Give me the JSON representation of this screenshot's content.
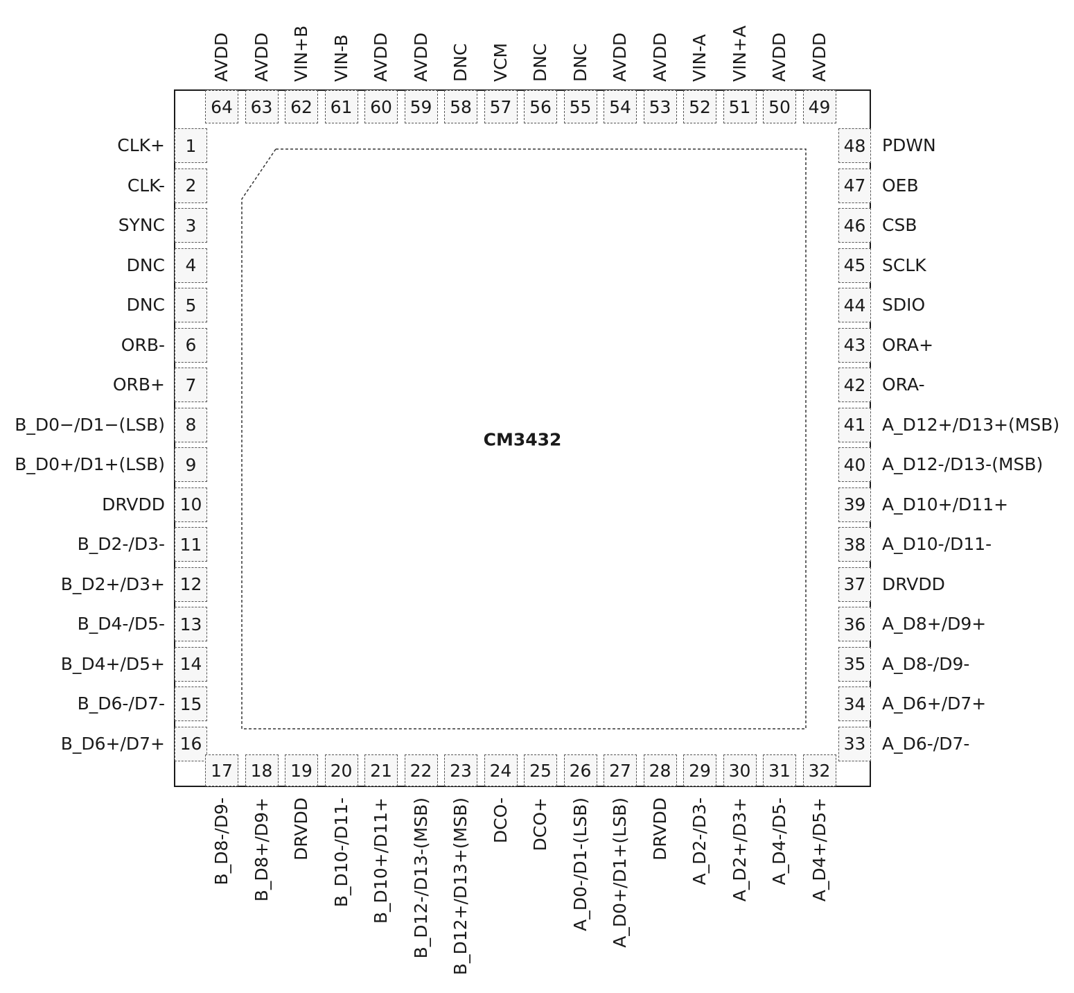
{
  "part_number": "CM3432",
  "pins": {
    "left": [
      {
        "num": "1",
        "name": "CLK+"
      },
      {
        "num": "2",
        "name": "CLK-"
      },
      {
        "num": "3",
        "name": "SYNC"
      },
      {
        "num": "4",
        "name": "DNC"
      },
      {
        "num": "5",
        "name": "DNC"
      },
      {
        "num": "6",
        "name": "ORB-"
      },
      {
        "num": "7",
        "name": "ORB+"
      },
      {
        "num": "8",
        "name": "B_D0−/D1−(LSB)"
      },
      {
        "num": "9",
        "name": "B_D0+/D1+(LSB)"
      },
      {
        "num": "10",
        "name": "DRVDD"
      },
      {
        "num": "11",
        "name": "B_D2-/D3-"
      },
      {
        "num": "12",
        "name": "B_D2+/D3+"
      },
      {
        "num": "13",
        "name": "B_D4-/D5-"
      },
      {
        "num": "14",
        "name": "B_D4+/D5+"
      },
      {
        "num": "15",
        "name": "B_D6-/D7-"
      },
      {
        "num": "16",
        "name": "B_D6+/D7+"
      }
    ],
    "bottom": [
      {
        "num": "17",
        "name": "B_D8-/D9-"
      },
      {
        "num": "18",
        "name": "B_D8+/D9+"
      },
      {
        "num": "19",
        "name": "DRVDD"
      },
      {
        "num": "20",
        "name": "B_D10-/D11-"
      },
      {
        "num": "21",
        "name": "B_D10+/D11+"
      },
      {
        "num": "22",
        "name": "B_D12-/D13-(MSB)"
      },
      {
        "num": "23",
        "name": "B_D12+/D13+(MSB)"
      },
      {
        "num": "24",
        "name": "DCO-"
      },
      {
        "num": "25",
        "name": "DCO+"
      },
      {
        "num": "26",
        "name": "A_D0-/D1-(LSB)"
      },
      {
        "num": "27",
        "name": "A_D0+/D1+(LSB)"
      },
      {
        "num": "28",
        "name": "DRVDD"
      },
      {
        "num": "29",
        "name": "A_D2-/D3-"
      },
      {
        "num": "30",
        "name": "A_D2+/D3+"
      },
      {
        "num": "31",
        "name": "A_D4-/D5-"
      },
      {
        "num": "32",
        "name": "A_D4+/D5+"
      }
    ],
    "right": [
      {
        "num": "48",
        "name": "PDWN"
      },
      {
        "num": "47",
        "name": "OEB"
      },
      {
        "num": "46",
        "name": "CSB"
      },
      {
        "num": "45",
        "name": "SCLK"
      },
      {
        "num": "44",
        "name": "SDIO"
      },
      {
        "num": "43",
        "name": "ORA+"
      },
      {
        "num": "42",
        "name": "ORA-"
      },
      {
        "num": "41",
        "name": "A_D12+/D13+(MSB)"
      },
      {
        "num": "40",
        "name": "A_D12-/D13-(MSB)"
      },
      {
        "num": "39",
        "name": "A_D10+/D11+"
      },
      {
        "num": "38",
        "name": "A_D10-/D11-"
      },
      {
        "num": "37",
        "name": "DRVDD"
      },
      {
        "num": "36",
        "name": "A_D8+/D9+"
      },
      {
        "num": "35",
        "name": "A_D8-/D9-"
      },
      {
        "num": "34",
        "name": "A_D6+/D7+"
      },
      {
        "num": "33",
        "name": "A_D6-/D7-"
      }
    ],
    "top": [
      {
        "num": "64",
        "name": "AVDD"
      },
      {
        "num": "63",
        "name": "AVDD"
      },
      {
        "num": "62",
        "name": "VIN+B"
      },
      {
        "num": "61",
        "name": "VIN-B"
      },
      {
        "num": "60",
        "name": "AVDD"
      },
      {
        "num": "59",
        "name": "AVDD"
      },
      {
        "num": "58",
        "name": "DNC"
      },
      {
        "num": "57",
        "name": "VCM"
      },
      {
        "num": "56",
        "name": "DNC"
      },
      {
        "num": "55",
        "name": "DNC"
      },
      {
        "num": "54",
        "name": "AVDD"
      },
      {
        "num": "53",
        "name": "AVDD"
      },
      {
        "num": "52",
        "name": "VIN-A"
      },
      {
        "num": "51",
        "name": "VIN+A"
      },
      {
        "num": "50",
        "name": "AVDD"
      },
      {
        "num": "49",
        "name": "AVDD"
      }
    ]
  }
}
